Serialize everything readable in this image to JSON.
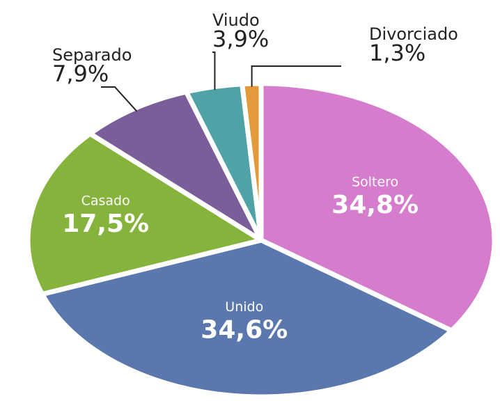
{
  "chart_data": {
    "type": "pie",
    "categories": [
      "Soltero",
      "Unido",
      "Casado",
      "Separado",
      "Viudo",
      "Divorciado"
    ],
    "values": [
      34.8,
      34.6,
      17.5,
      7.9,
      3.9,
      1.3
    ],
    "value_labels": [
      "34,8%",
      "34,6%",
      "17,5%",
      "7,9%",
      "3,9%",
      "1,3%"
    ],
    "colors": [
      "#d57ccc",
      "#5a77ae",
      "#85b33b",
      "#7a5e99",
      "#4fa2a6",
      "#e39a3a"
    ]
  }
}
